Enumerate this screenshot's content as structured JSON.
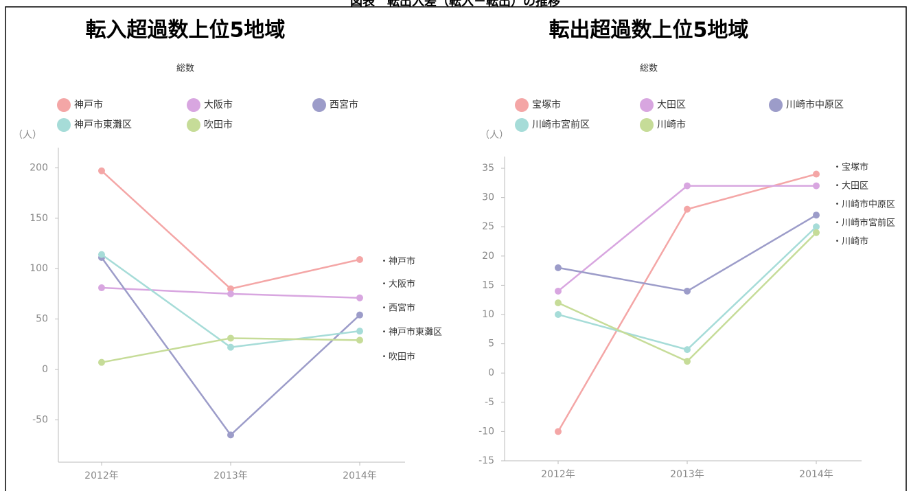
{
  "header": {
    "title": "図表　転出入差（転入－転出）の推移"
  },
  "chart_data": [
    {
      "type": "line",
      "title": "転入超過数上位5地域",
      "subtitle": "総数",
      "y_unit": "（人）",
      "categories": [
        "2012年",
        "2013年",
        "2014年"
      ],
      "ylim": [
        -92,
        220
      ],
      "yticks": [
        -50,
        0,
        50,
        100,
        150,
        200
      ],
      "series": [
        {
          "name": "神戸市",
          "color": "#f4a6a6",
          "values": [
            197,
            80,
            109
          ]
        },
        {
          "name": "大阪市",
          "color": "#d8a6e0",
          "values": [
            81,
            75,
            71
          ]
        },
        {
          "name": "西宮市",
          "color": "#9c9cc9",
          "values": [
            111,
            -65,
            54
          ]
        },
        {
          "name": "神戸市東灘区",
          "color": "#a6dcd8",
          "values": [
            114,
            22,
            38
          ]
        },
        {
          "name": "吹田市",
          "color": "#c6dc98",
          "values": [
            7,
            31,
            29
          ]
        }
      ],
      "end_labels": [
        "・神戸市",
        "・大阪市",
        "・西宮市",
        "・神戸市東灘区",
        "・吹田市"
      ]
    },
    {
      "type": "line",
      "title": "転出超過数上位5地域",
      "subtitle": "総数",
      "y_unit": "（人）",
      "categories": [
        "2012年",
        "2013年",
        "2014年"
      ],
      "ylim": [
        -15,
        37
      ],
      "yticks": [
        -15,
        -10,
        -5,
        0,
        5,
        10,
        15,
        20,
        25,
        30,
        35
      ],
      "series": [
        {
          "name": "宝塚市",
          "color": "#f4a6a6",
          "values": [
            -10,
            28,
            34
          ]
        },
        {
          "name": "大田区",
          "color": "#d8a6e0",
          "values": [
            14,
            32,
            32
          ]
        },
        {
          "name": "川崎市中原区",
          "color": "#9c9cc9",
          "values": [
            18,
            14,
            27
          ]
        },
        {
          "name": "川崎市宮前区",
          "color": "#a6dcd8",
          "values": [
            10,
            4,
            25
          ]
        },
        {
          "name": "川崎市",
          "color": "#c6dc98",
          "values": [
            12,
            2,
            24
          ]
        }
      ],
      "end_labels": [
        "・宝塚市",
        "・大田区",
        "・川崎市中原区",
        "・川崎市宮前区",
        "・川崎市"
      ]
    }
  ]
}
